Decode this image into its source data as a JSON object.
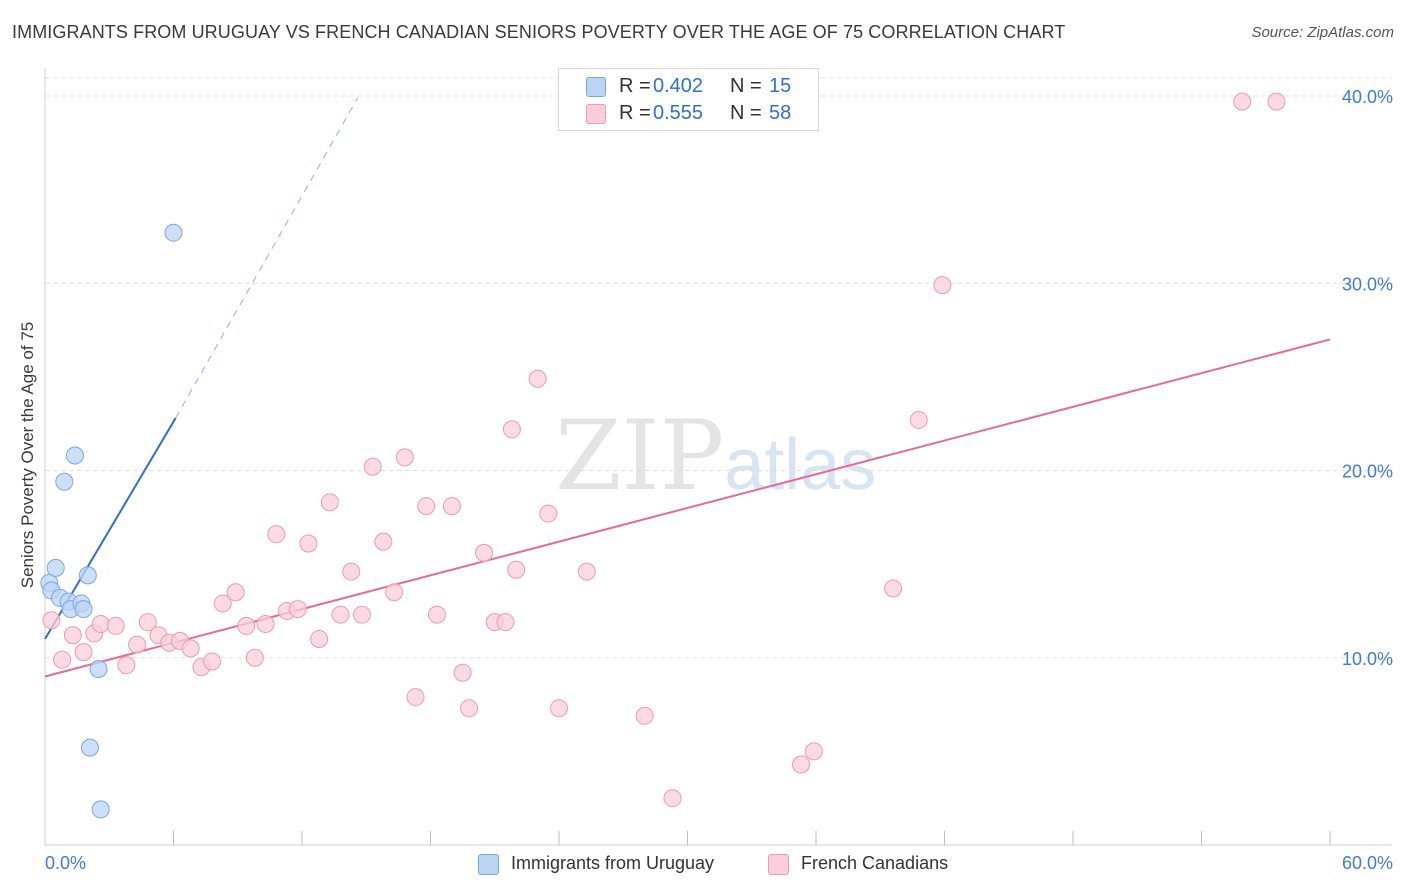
{
  "title": "IMMIGRANTS FROM URUGUAY VS FRENCH CANADIAN SENIORS POVERTY OVER THE AGE OF 75 CORRELATION CHART",
  "source": "Source: ZipAtlas.com",
  "watermark": {
    "zip": "ZIP",
    "atlas": "atlas"
  },
  "legend": {
    "uruguay": {
      "r_label": "R =",
      "r_value": "0.402",
      "n_label": "N =",
      "n_value": "15"
    },
    "french": {
      "r_label": "R =",
      "r_value": "0.555",
      "n_label": "N =",
      "n_value": "58"
    }
  },
  "bottom_legend": {
    "uruguay": "Immigrants from Uruguay",
    "french": "French Canadians"
  },
  "colors": {
    "uruguay_fill": "#bcd4f4",
    "uruguay_stroke": "#7aa7e0",
    "uruguay_line": "#2f6fd6",
    "french_fill": "#f9cdd9",
    "french_stroke": "#ef9ab2",
    "french_line": "#e76b97",
    "tick_label": "#3f7bd9",
    "grid": "#dedede"
  },
  "chart_data": {
    "type": "scatter",
    "title": "IMMIGRANTS FROM URUGUAY VS FRENCH CANADIAN SENIORS POVERTY OVER THE AGE OF 75 CORRELATION CHART",
    "xlabel": "",
    "ylabel": "Seniors Poverty Over the Age of 75",
    "xlim": [
      0,
      60
    ],
    "ylim": [
      0,
      40
    ],
    "x_tick_labels": [
      "0.0%",
      "60.0%"
    ],
    "y_ticks": [
      10,
      20,
      30,
      40
    ],
    "y_tick_labels": [
      "10.0%",
      "20.0%",
      "30.0%",
      "40.0%"
    ],
    "grid": true,
    "series": [
      {
        "name": "Immigrants from Uruguay",
        "points": [
          [
            0.2,
            14.0
          ],
          [
            0.3,
            13.6
          ],
          [
            0.5,
            14.8
          ],
          [
            0.7,
            13.2
          ],
          [
            0.9,
            19.4
          ],
          [
            1.1,
            13.0
          ],
          [
            1.2,
            12.6
          ],
          [
            1.4,
            20.8
          ],
          [
            1.7,
            12.9
          ],
          [
            1.8,
            12.6
          ],
          [
            2.0,
            14.4
          ],
          [
            2.1,
            5.2
          ],
          [
            2.5,
            9.4
          ],
          [
            2.6,
            1.9
          ],
          [
            6.0,
            32.7
          ]
        ],
        "trend": {
          "x": [
            0,
            6.1
          ],
          "y": [
            11.0,
            22.8
          ]
        },
        "trend_extension": {
          "x": [
            6.1,
            14.6
          ],
          "y": [
            22.8,
            39.9
          ]
        }
      },
      {
        "name": "French Canadians",
        "points": [
          [
            0.3,
            12.0
          ],
          [
            0.8,
            9.9
          ],
          [
            1.3,
            11.2
          ],
          [
            1.8,
            10.3
          ],
          [
            2.3,
            11.3
          ],
          [
            2.6,
            11.8
          ],
          [
            3.3,
            11.7
          ],
          [
            3.8,
            9.6
          ],
          [
            4.3,
            10.7
          ],
          [
            4.8,
            11.9
          ],
          [
            5.3,
            11.2
          ],
          [
            5.8,
            10.8
          ],
          [
            6.3,
            10.9
          ],
          [
            6.8,
            10.5
          ],
          [
            7.3,
            9.5
          ],
          [
            7.8,
            9.8
          ],
          [
            8.3,
            12.9
          ],
          [
            8.9,
            13.5
          ],
          [
            9.4,
            11.7
          ],
          [
            9.8,
            10.0
          ],
          [
            10.3,
            11.8
          ],
          [
            10.8,
            16.6
          ],
          [
            11.3,
            12.5
          ],
          [
            11.8,
            12.6
          ],
          [
            12.3,
            16.1
          ],
          [
            12.8,
            11.0
          ],
          [
            13.3,
            18.3
          ],
          [
            13.8,
            12.3
          ],
          [
            14.3,
            14.6
          ],
          [
            14.8,
            12.3
          ],
          [
            15.3,
            20.2
          ],
          [
            15.8,
            16.2
          ],
          [
            16.3,
            13.5
          ],
          [
            16.8,
            20.7
          ],
          [
            17.3,
            7.9
          ],
          [
            17.8,
            18.1
          ],
          [
            18.3,
            12.3
          ],
          [
            19.0,
            18.1
          ],
          [
            19.5,
            9.2
          ],
          [
            19.8,
            7.3
          ],
          [
            20.5,
            15.6
          ],
          [
            21.0,
            11.9
          ],
          [
            21.5,
            11.9
          ],
          [
            21.8,
            22.2
          ],
          [
            22.0,
            14.7
          ],
          [
            23.0,
            24.9
          ],
          [
            23.5,
            17.7
          ],
          [
            24.0,
            7.3
          ],
          [
            25.3,
            14.6
          ],
          [
            28.0,
            6.9
          ],
          [
            29.3,
            2.5
          ],
          [
            35.3,
            4.3
          ],
          [
            35.9,
            5.0
          ],
          [
            39.6,
            13.7
          ],
          [
            40.8,
            22.7
          ],
          [
            41.9,
            29.9
          ],
          [
            55.9,
            39.7
          ],
          [
            57.5,
            39.7
          ]
        ],
        "trend": {
          "x": [
            0,
            60
          ],
          "y": [
            9.0,
            27.0
          ]
        }
      }
    ]
  }
}
